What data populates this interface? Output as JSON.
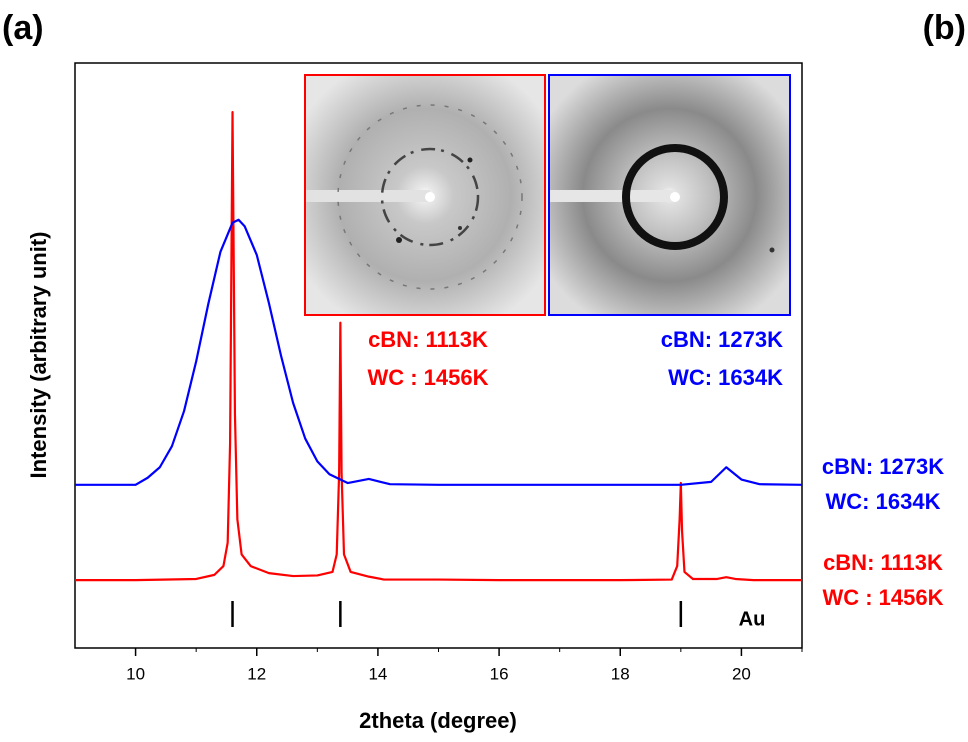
{
  "chart_data": {
    "type": "line",
    "panel_labels": [
      "(a)",
      "(b)"
    ],
    "x_label": "2theta (degree)",
    "y_label": "Intensity (arbitrary unit)",
    "xlim": [
      9,
      21
    ],
    "xticks": [
      10,
      12,
      14,
      16,
      18,
      20
    ],
    "ylim": [
      0,
      100
    ],
    "series": [
      {
        "name": "cBN: 1113K WC : 1456K",
        "color": "#ff0000",
        "x": [
          9,
          10,
          11,
          11.3,
          11.45,
          11.52,
          11.56,
          11.6,
          11.64,
          11.68,
          11.75,
          11.9,
          12.2,
          12.6,
          13.0,
          13.25,
          13.32,
          13.36,
          13.38,
          13.4,
          13.44,
          13.55,
          13.85,
          14.1,
          15,
          16,
          17,
          18,
          18.85,
          18.94,
          18.98,
          19.0,
          19.02,
          19.06,
          19.2,
          19.6,
          19.75,
          19.9,
          20.2,
          21
        ],
        "values": [
          11.6,
          11.6,
          11.8,
          12.5,
          14,
          18,
          35,
          91.6,
          40,
          22,
          16,
          14,
          12.8,
          12.3,
          12.4,
          13,
          16,
          30,
          55.6,
          30,
          16,
          13,
          12.2,
          11.7,
          11.7,
          11.6,
          11.6,
          11.6,
          11.7,
          14,
          22,
          28.2,
          20,
          13,
          11.8,
          11.8,
          12.1,
          11.8,
          11.6,
          11.6
        ]
      },
      {
        "name": "cBN: 1273K WC: 1634K",
        "color": "#0000ff",
        "x": [
          9,
          10,
          10.2,
          10.4,
          10.6,
          10.8,
          11.0,
          11.2,
          11.4,
          11.6,
          11.7,
          11.8,
          12.0,
          12.2,
          12.4,
          12.6,
          12.8,
          13.0,
          13.2,
          13.5,
          13.85,
          14.2,
          15,
          16,
          17,
          18,
          19,
          19.5,
          19.75,
          20.0,
          20.3,
          21
        ],
        "values": [
          27.9,
          27.9,
          29.1,
          30.9,
          34.5,
          40.5,
          49,
          58.8,
          67.7,
          72.7,
          73.2,
          72.1,
          67.2,
          59,
          50,
          41.9,
          35.8,
          31.9,
          29.7,
          28.2,
          28.9,
          28,
          27.9,
          27.9,
          27.9,
          27.9,
          27.9,
          28.4,
          30.9,
          28.8,
          28,
          27.9
        ]
      }
    ],
    "reference_lines": [
      11.6,
      13.38,
      19.0
    ],
    "reference_label": "Au",
    "inset_labels": [
      {
        "lines": [
          "cBN: 1113K",
          "WC : 1456K"
        ],
        "color": "#ff0000"
      },
      {
        "lines": [
          "cBN: 1273K",
          "WC: 1634K"
        ],
        "color": "#0000ff"
      }
    ],
    "side_labels": [
      {
        "lines": [
          "cBN: 1273K",
          "WC: 1634K"
        ],
        "color": "#0000ff"
      },
      {
        "lines": [
          "cBN: 1113K",
          "WC : 1456K"
        ],
        "color": "#ff0000"
      }
    ]
  }
}
